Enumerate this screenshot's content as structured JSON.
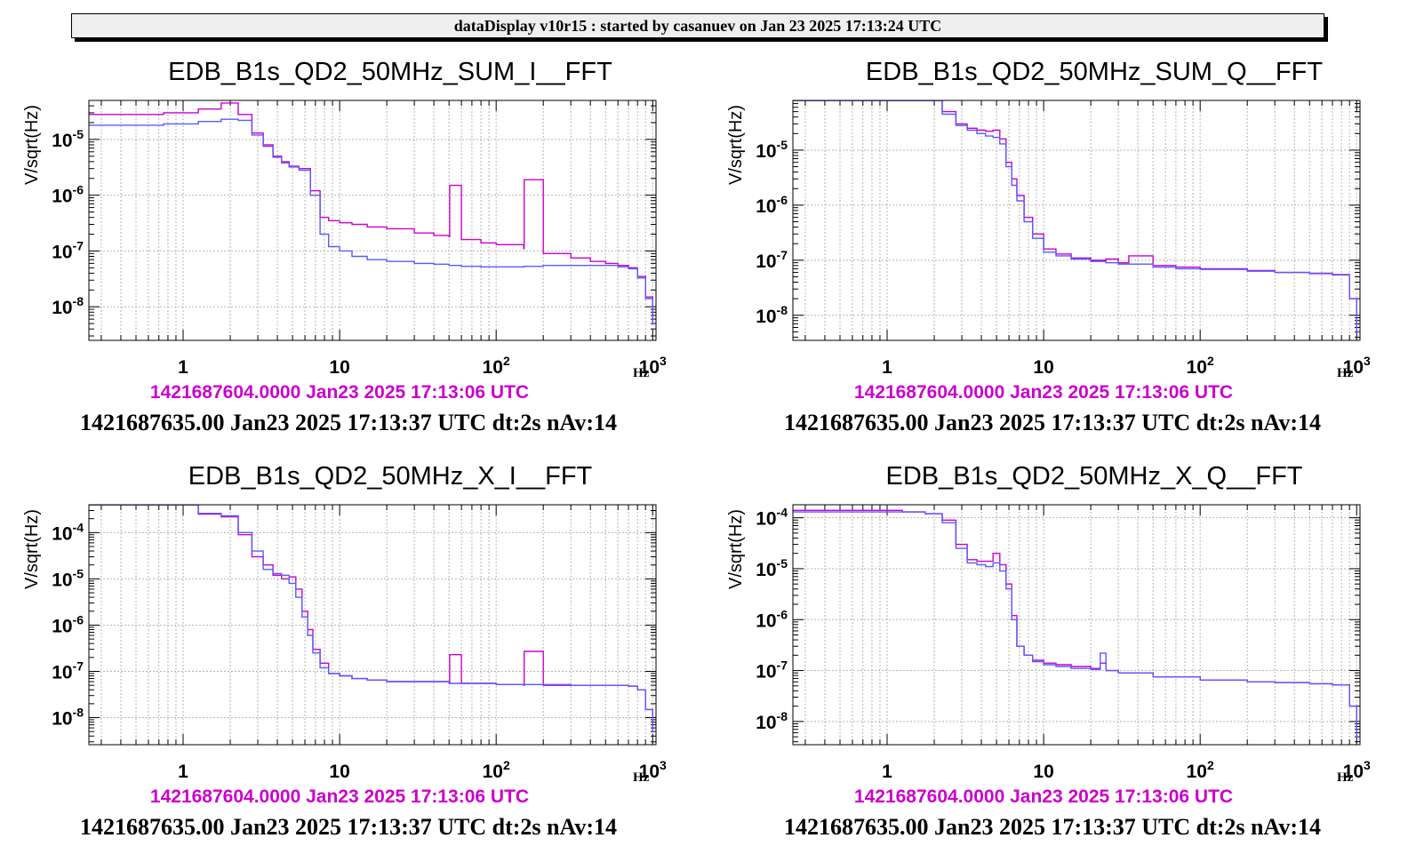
{
  "header": {
    "title": "dataDisplay v10r15 : started by casanuev on Jan 23 2025 17:13:24 UTC"
  },
  "colors": {
    "ref_trace": "#cc00cc",
    "live_trace": "#5a5aff",
    "grid": "#b4b4b4",
    "header_bg": "#efefef"
  },
  "chart_data": [
    {
      "type": "line",
      "title": "EDB_B1s_QD2_50MHz_SUM_I__FFT",
      "ylabel": "V/sqrt(Hz)",
      "xlabel": "Hz",
      "xscale": "log",
      "yscale": "log",
      "xlim": [
        0.25,
        1050
      ],
      "ylim": [
        2.5e-09,
        5e-05
      ],
      "xticks": [
        "1",
        "10",
        "10^2",
        "10^3"
      ],
      "yticks": [
        "10^-5",
        "10^-6",
        "10^-7",
        "10^-8"
      ],
      "grid": true,
      "reference_timestamp": "1421687604.0000 Jan23 2025 17:13:06 UTC",
      "live_timestamp": "1421687635.00 Jan23 2025 17:13:37 UTC dt:2s nAv:14",
      "series": [
        {
          "color": "#cc00cc",
          "x": [
            0.25,
            0.75,
            1.25,
            1.75,
            2.25,
            2.75,
            3.25,
            3.75,
            4.25,
            4.75,
            5.5,
            6.5,
            7.5,
            8.5,
            10,
            12,
            15,
            20,
            30,
            40,
            50,
            50.5,
            60,
            80,
            100,
            150,
            151,
            200,
            300,
            400,
            500,
            600,
            700,
            800,
            900,
            1000
          ],
          "y": [
            2.8e-05,
            3e-05,
            3.5e-05,
            4.5e-05,
            2.8e-05,
            1.3e-05,
            8e-06,
            5e-06,
            4e-06,
            3.3e-06,
            3e-06,
            1.2e-06,
            4e-07,
            3.5e-07,
            3.2e-07,
            3e-07,
            2.7e-07,
            2.5e-07,
            2.1e-07,
            1.9e-07,
            1.8e-07,
            1.5e-06,
            1.6e-07,
            1.4e-07,
            1.3e-07,
            1.1e-07,
            1.9e-06,
            9e-08,
            7.5e-08,
            6.5e-08,
            6e-08,
            5.5e-08,
            5e-08,
            3.5e-08,
            1.5e-08,
            5e-09
          ]
        },
        {
          "color": "#5a5aff",
          "x": [
            0.25,
            0.75,
            1.25,
            1.75,
            2.25,
            2.75,
            3.25,
            3.75,
            4.25,
            4.75,
            5.5,
            6.5,
            7.5,
            8.5,
            10,
            12,
            15,
            20,
            30,
            40,
            50,
            60,
            80,
            100,
            150,
            200,
            300,
            400,
            500,
            600,
            700,
            800,
            900,
            1000
          ],
          "y": [
            1.8e-05,
            1.9e-05,
            2.1e-05,
            2.3e-05,
            2.2e-05,
            1.2e-05,
            7.5e-06,
            4.8e-06,
            3.8e-06,
            3.2e-06,
            2.8e-06,
            1e-06,
            2e-07,
            1.2e-07,
            1e-07,
            8e-08,
            7e-08,
            6.5e-08,
            6e-08,
            5.8e-08,
            5.5e-08,
            5.3e-08,
            5.2e-08,
            5.2e-08,
            5.3e-08,
            5.5e-08,
            5.5e-08,
            5.5e-08,
            5.5e-08,
            5.2e-08,
            4.8e-08,
            3.3e-08,
            1.4e-08,
            5e-09
          ]
        }
      ]
    },
    {
      "type": "line",
      "title": "EDB_B1s_QD2_50MHz_SUM_Q__FFT",
      "ylabel": "V/sqrt(Hz)",
      "xlabel": "Hz",
      "xscale": "log",
      "yscale": "log",
      "xlim": [
        0.25,
        1050
      ],
      "ylim": [
        3.5e-09,
        8e-05
      ],
      "xticks": [
        "1",
        "10",
        "10^2",
        "10^3"
      ],
      "yticks": [
        "10^-5",
        "10^-6",
        "10^-7",
        "10^-8"
      ],
      "grid": true,
      "reference_timestamp": "1421687604.0000 Jan23 2025 17:13:06 UTC",
      "live_timestamp": "1421687635.00 Jan23 2025 17:13:37 UTC dt:2s nAv:14",
      "series": [
        {
          "color": "#cc00cc",
          "x": [
            0.25,
            0.75,
            1.25,
            1.75,
            2.25,
            2.75,
            3.25,
            3.75,
            4.25,
            4.75,
            5.25,
            5.75,
            6.25,
            6.75,
            7.5,
            8.5,
            10,
            12,
            15,
            20,
            25,
            30,
            35,
            50,
            70,
            100,
            200,
            300,
            500,
            700,
            900,
            1000
          ],
          "y": [
            8e-05,
            8e-05,
            8e-05,
            8e-05,
            5e-05,
            3e-05,
            2.5e-05,
            2.3e-05,
            2.2e-05,
            2.3e-05,
            1.6e-05,
            6e-06,
            3e-06,
            1.5e-06,
            6e-07,
            3e-07,
            1.6e-07,
            1.3e-07,
            1.1e-07,
            1e-07,
            1.05e-07,
            9e-08,
            1.2e-07,
            8e-08,
            7.5e-08,
            7e-08,
            6.5e-08,
            6e-08,
            5.8e-08,
            5.5e-08,
            2e-08,
            5e-09
          ]
        },
        {
          "color": "#5a5aff",
          "x": [
            0.25,
            0.75,
            1.25,
            1.75,
            2.25,
            2.75,
            3.25,
            3.75,
            4.25,
            4.75,
            5.25,
            5.75,
            6.25,
            6.75,
            7.5,
            8.5,
            10,
            12,
            15,
            20,
            25,
            30,
            50,
            70,
            100,
            200,
            300,
            500,
            700,
            900,
            1000
          ],
          "y": [
            8e-05,
            8e-05,
            8e-05,
            8e-05,
            4.5e-05,
            2.8e-05,
            2.3e-05,
            2e-05,
            1.8e-05,
            1.7e-05,
            1.3e-05,
            5e-06,
            2.3e-06,
            1.2e-06,
            5e-07,
            2.5e-07,
            1.4e-07,
            1.2e-07,
            1.05e-07,
            9.5e-08,
            9e-08,
            8.5e-08,
            7.5e-08,
            7e-08,
            6.8e-08,
            6.3e-08,
            6e-08,
            5.7e-08,
            5.4e-08,
            2e-08,
            5e-09
          ]
        }
      ]
    },
    {
      "type": "line",
      "title": "EDB_B1s_QD2_50MHz_X_I__FFT",
      "ylabel": "V/sqrt(Hz)",
      "xlabel": "Hz",
      "xscale": "log",
      "yscale": "log",
      "xlim": [
        0.25,
        1050
      ],
      "ylim": [
        2.6e-09,
        0.0004
      ],
      "xticks": [
        "1",
        "10",
        "10^2",
        "10^3"
      ],
      "yticks": [
        "10^-4",
        "10^-5",
        "10^-6",
        "10^-7",
        "10^-8"
      ],
      "grid": true,
      "reference_timestamp": "1421687604.0000 Jan23 2025 17:13:06 UTC",
      "live_timestamp": "1421687635.00 Jan23 2025 17:13:37 UTC dt:2s nAv:14",
      "series": [
        {
          "color": "#cc00cc",
          "x": [
            0.25,
            0.75,
            1.25,
            1.75,
            2.25,
            2.75,
            3.25,
            3.75,
            4.25,
            4.75,
            5.25,
            5.75,
            6.25,
            6.75,
            7.5,
            8.5,
            10,
            12,
            15,
            20,
            30,
            50,
            50.5,
            60,
            100,
            150,
            151,
            200,
            300,
            500,
            700,
            800,
            900,
            1000
          ],
          "y": [
            0.0004,
            0.0004,
            0.00025,
            0.00022,
            9e-05,
            3e-05,
            2e-05,
            1.2e-05,
            1e-05,
            1.1e-05,
            6e-06,
            2e-06,
            8e-07,
            3e-07,
            1.5e-07,
            9e-08,
            8e-08,
            7e-08,
            6.5e-08,
            6e-08,
            6e-08,
            5.5e-08,
            2.3e-07,
            5.5e-08,
            5.2e-08,
            5e-08,
            2.7e-07,
            5e-08,
            5e-08,
            5e-08,
            4.8e-08,
            4e-08,
            1.5e-08,
            5e-09
          ]
        },
        {
          "color": "#5a5aff",
          "x": [
            0.25,
            0.75,
            1.25,
            1.75,
            2.25,
            2.75,
            3.25,
            3.75,
            4.25,
            4.75,
            5.25,
            5.75,
            6.25,
            6.75,
            7.5,
            8.5,
            10,
            12,
            15,
            20,
            30,
            50,
            60,
            100,
            200,
            300,
            500,
            700,
            800,
            900,
            1000
          ],
          "y": [
            0.0004,
            0.0004,
            0.00026,
            0.00023,
            0.0001,
            4e-05,
            1.6e-05,
            1.3e-05,
            1.2e-05,
            8e-06,
            4e-06,
            1.5e-06,
            6e-07,
            2.5e-07,
            1.2e-07,
            9e-08,
            8e-08,
            7e-08,
            6.5e-08,
            6e-08,
            6e-08,
            5.5e-08,
            5.5e-08,
            5.2e-08,
            5.2e-08,
            5e-08,
            5e-08,
            4.8e-08,
            4e-08,
            1.5e-08,
            5e-09
          ]
        }
      ]
    },
    {
      "type": "line",
      "title": "EDB_B1s_QD2_50MHz_X_Q__FFT",
      "ylabel": "V/sqrt(Hz)",
      "xlabel": "Hz",
      "xscale": "log",
      "yscale": "log",
      "xlim": [
        0.25,
        1050
      ],
      "ylim": [
        3.5e-09,
        0.00018
      ],
      "xticks": [
        "1",
        "10",
        "10^2",
        "10^3"
      ],
      "yticks": [
        "10^-4",
        "10^-5",
        "10^-6",
        "10^-7",
        "10^-8"
      ],
      "grid": true,
      "reference_timestamp": "1421687604.0000 Jan23 2025 17:13:06 UTC",
      "live_timestamp": "1421687635.00 Jan23 2025 17:13:37 UTC dt:2s nAv:14",
      "series": [
        {
          "color": "#cc00cc",
          "x": [
            0.25,
            0.75,
            1.25,
            1.75,
            2.25,
            2.75,
            3.25,
            3.75,
            4.25,
            4.75,
            5.25,
            5.75,
            6.25,
            6.75,
            7.5,
            8.5,
            10,
            12,
            15,
            20,
            23,
            25,
            30,
            50,
            100,
            200,
            300,
            500,
            700,
            900,
            1000
          ],
          "y": [
            0.00014,
            0.00014,
            0.00013,
            0.00012,
            9e-05,
            3e-05,
            1.5e-05,
            1.4e-05,
            1.4e-05,
            2e-05,
            1.2e-05,
            5e-06,
            1.2e-06,
            3e-07,
            2e-07,
            1.6e-07,
            1.4e-07,
            1.3e-07,
            1.2e-07,
            1.1e-07,
            1.4e-07,
            1e-07,
            9e-08,
            7.5e-08,
            6.5e-08,
            6e-08,
            5.8e-08,
            5.5e-08,
            5.2e-08,
            2e-08,
            5e-09
          ]
        },
        {
          "color": "#5a5aff",
          "x": [
            0.25,
            0.75,
            1.25,
            1.75,
            2.25,
            2.75,
            3.25,
            3.75,
            4.25,
            4.75,
            5.25,
            5.75,
            6.25,
            6.75,
            7.5,
            8.5,
            10,
            12,
            15,
            20,
            23,
            25,
            30,
            50,
            100,
            200,
            300,
            500,
            700,
            900,
            1000
          ],
          "y": [
            0.00013,
            0.00013,
            0.00013,
            0.00012,
            8e-05,
            2.5e-05,
            1.3e-05,
            1.2e-05,
            1.1e-05,
            1.3e-05,
            9e-06,
            4e-06,
            1e-06,
            3e-07,
            2e-07,
            1.5e-07,
            1.3e-07,
            1.2e-07,
            1.1e-07,
            1.05e-07,
            2.2e-07,
            1e-07,
            9e-08,
            7.5e-08,
            6.5e-08,
            6e-08,
            5.8e-08,
            5.5e-08,
            5.2e-08,
            2e-08,
            5e-09
          ]
        }
      ]
    }
  ]
}
